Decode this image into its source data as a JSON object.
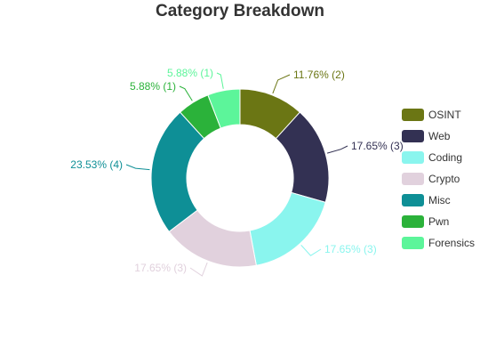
{
  "chart_data": {
    "type": "pie",
    "variant": "donut",
    "title": "Category Breakdown",
    "legend_position": "right",
    "slices": [
      {
        "name": "OSINT",
        "count": 2,
        "label": "11.76% (2)",
        "color": "#6b7614"
      },
      {
        "name": "Web",
        "count": 3,
        "label": "17.65% (3)",
        "color": "#333153"
      },
      {
        "name": "Coding",
        "count": 3,
        "label": "17.65% (3)",
        "color": "#8af5ee"
      },
      {
        "name": "Crypto",
        "count": 3,
        "label": "17.65% (3)",
        "color": "#e1d1dd"
      },
      {
        "name": "Misc",
        "count": 4,
        "label": "23.53% (4)",
        "color": "#0e8f96"
      },
      {
        "name": "Pwn",
        "count": 1,
        "label": "5.88% (1)",
        "color": "#2bb23a"
      },
      {
        "name": "Forensics",
        "count": 1,
        "label": "5.88% (1)",
        "color": "#5cf59a"
      }
    ]
  }
}
